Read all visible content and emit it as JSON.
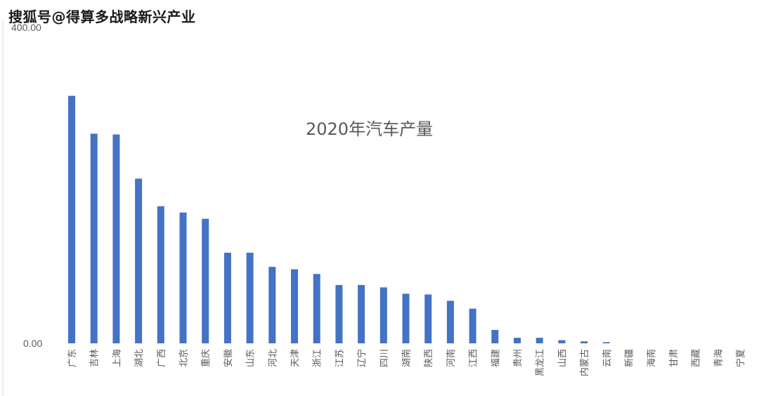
{
  "watermark": "搜狐号@得算多战略新兴产业",
  "chart_data": {
    "type": "bar",
    "title": "2020年汽车产量",
    "xlabel": "",
    "ylabel": "",
    "ylim": [
      0,
      400
    ],
    "y_ticks": [
      "0.00",
      "400.00"
    ],
    "grid": false,
    "legend": "none",
    "bar_color": "#4472c4",
    "categories": [
      "广东",
      "吉林",
      "上海",
      "湖北",
      "广西",
      "北京",
      "重庆",
      "安徽",
      "山东",
      "河北",
      "天津",
      "浙江",
      "江苏",
      "辽宁",
      "四川",
      "湖南",
      "陕西",
      "河南",
      "江西",
      "福建",
      "贵州",
      "黑龙江",
      "山西",
      "内蒙古",
      "云南",
      "新疆",
      "海南",
      "甘肃",
      "西藏",
      "青海",
      "宁夏"
    ],
    "values": [
      314,
      266,
      265,
      209,
      174,
      166,
      158,
      115,
      115,
      97,
      94,
      88,
      74,
      74,
      71,
      63,
      62,
      54,
      44,
      17,
      7,
      7,
      4,
      2.5,
      1.5,
      0,
      0,
      0,
      0,
      0,
      0
    ]
  }
}
